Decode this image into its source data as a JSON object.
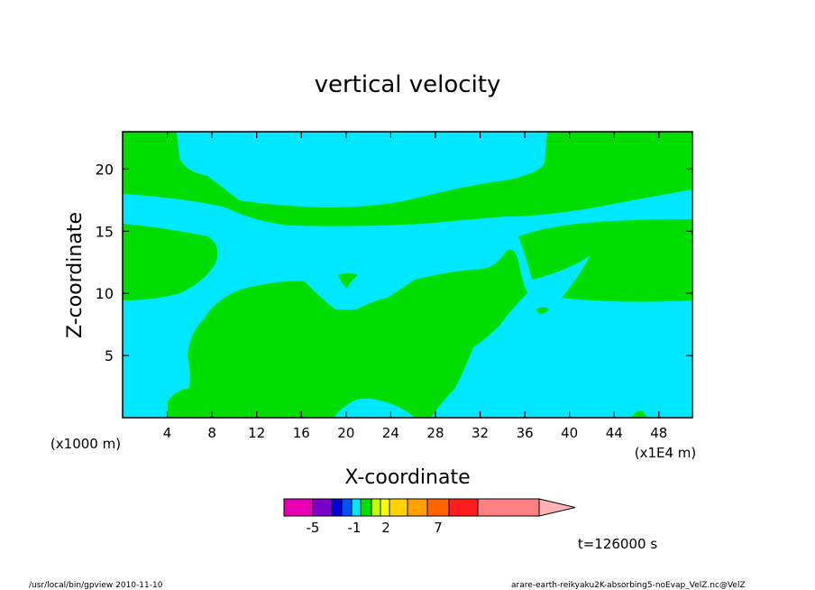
{
  "chart_data": {
    "type": "heatmap",
    "title": "vertical velocity",
    "xlabel": "X-coordinate",
    "ylabel": "Z-coordinate",
    "x_unit": "(x1E4 m)",
    "y_unit": "(x1000 m)",
    "xlim": [
      0,
      51
    ],
    "ylim": [
      0,
      23
    ],
    "x_ticks": [
      "4",
      "8",
      "12",
      "16",
      "20",
      "24",
      "28",
      "32",
      "36",
      "40",
      "44",
      "48"
    ],
    "x_tick_values": [
      4,
      8,
      12,
      16,
      20,
      24,
      28,
      32,
      36,
      40,
      44,
      48
    ],
    "y_ticks": [
      "5",
      "10",
      "15",
      "20"
    ],
    "y_tick_values": [
      5,
      10,
      15,
      20
    ],
    "regions": [
      {
        "name": "negative",
        "color": "#00e8ff"
      },
      {
        "name": "positive",
        "color": "#00dd00"
      }
    ],
    "colorbar": {
      "colors": [
        "#e600b4",
        "#7a00c8",
        "#0000dc",
        "#0050ff",
        "#00e8ff",
        "#00dd00",
        "#c8ff00",
        "#ffff00",
        "#ffd200",
        "#ffa000",
        "#ff6400",
        "#ff1e1e",
        "#ff8080",
        "#ffb4b4"
      ],
      "labels": [
        "-5",
        "-1",
        "2",
        "7"
      ]
    },
    "time_label": "t=126000 s"
  },
  "footer": {
    "left": "/usr/local/bin/gpview  2010-11-10",
    "right": "arare-earth-reikyaku2K-absorbing5-noEvap_VelZ.nc@VelZ"
  }
}
